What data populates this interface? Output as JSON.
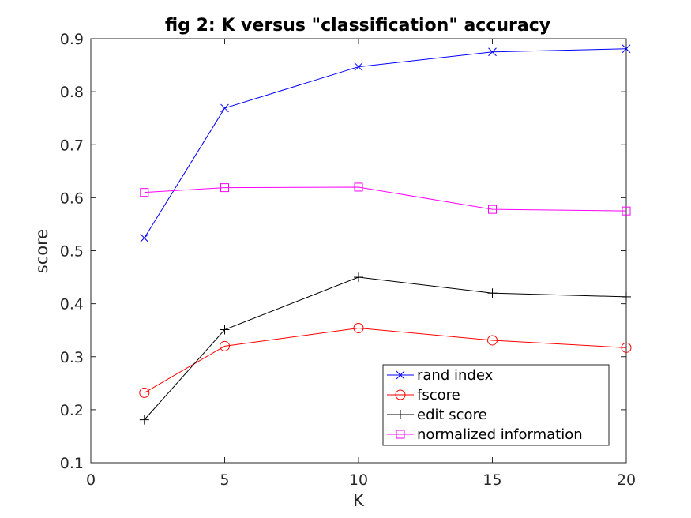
{
  "chart_data": {
    "type": "line",
    "title": "fig 2: K versus \"classification\" accuracy",
    "xlabel": "K",
    "ylabel": "score",
    "xlim": [
      0,
      20
    ],
    "ylim": [
      0.1,
      0.9
    ],
    "xticks": [
      "0",
      "5",
      "10",
      "15",
      "20"
    ],
    "yticks": [
      "0.1",
      "0.2",
      "0.3",
      "0.4",
      "0.5",
      "0.6",
      "0.7",
      "0.8",
      "0.9"
    ],
    "x": [
      2,
      5,
      10,
      15,
      20
    ],
    "grid": false,
    "legend_position": "bottom-right",
    "series": [
      {
        "name": "rand index",
        "marker": "x",
        "color": "#0000ff",
        "values": [
          0.524,
          0.769,
          0.847,
          0.875,
          0.881
        ]
      },
      {
        "name": "fscore",
        "marker": "o",
        "color": "#ff0000",
        "values": [
          0.232,
          0.32,
          0.354,
          0.331,
          0.317
        ]
      },
      {
        "name": "edit score",
        "marker": "+",
        "color": "#000000",
        "values": [
          0.181,
          0.351,
          0.45,
          0.42,
          0.413
        ]
      },
      {
        "name": "normalized information",
        "marker": "s",
        "color": "#ff00ff",
        "values": [
          0.61,
          0.619,
          0.62,
          0.578,
          0.575
        ]
      }
    ]
  }
}
